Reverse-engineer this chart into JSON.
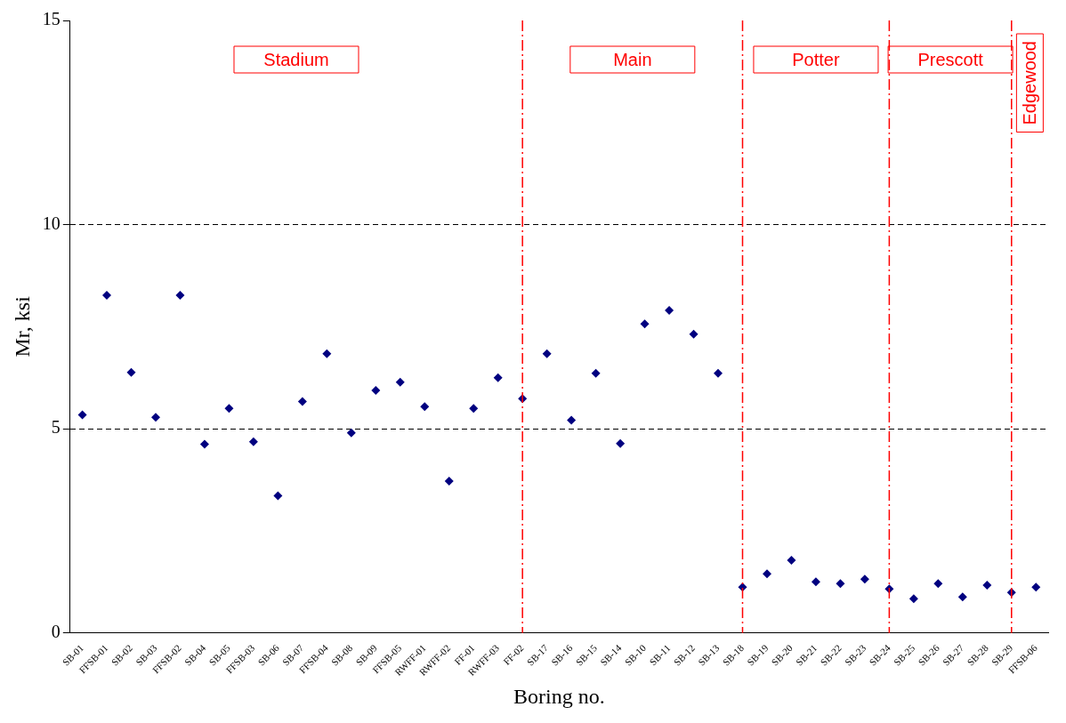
{
  "chart_data": {
    "type": "scatter",
    "xlabel": "Boring no.",
    "ylabel": "Mr, ksi",
    "categories": [
      "SB-01",
      "FFSB-01",
      "SB-02",
      "SB-03",
      "FFSB-02",
      "SB-04",
      "SB-05",
      "FFSB-03",
      "SB-06",
      "SB-07",
      "FFSB-04",
      "SB-08",
      "SB-09",
      "FFSB-05",
      "RWFF-01",
      "RWFF-02",
      "FF-01",
      "RWFF-03",
      "FF-02",
      "SB-17",
      "SB-16",
      "SB-15",
      "SB-14",
      "SB-10",
      "SB-11",
      "SB-12",
      "SB-13",
      "SB-18",
      "SB-19",
      "SB-20",
      "SB-21",
      "SB-22",
      "SB-23",
      "SB-24",
      "SB-25",
      "SB-26",
      "SB-27",
      "SB-28",
      "SB-29",
      "FFSB-06"
    ],
    "series": [
      {
        "color": "#000080",
        "values": [
          5.34,
          8.27,
          6.38,
          5.28,
          8.27,
          4.62,
          5.5,
          4.68,
          3.36,
          5.67,
          6.84,
          4.9,
          5.94,
          6.14,
          5.54,
          3.72,
          5.5,
          6.25,
          5.74,
          6.84,
          5.21,
          6.36,
          4.64,
          7.57,
          7.9,
          7.32,
          6.36,
          1.12,
          1.45,
          1.78,
          1.25,
          1.21,
          1.32,
          1.08,
          0.84,
          1.21,
          0.88,
          1.17,
          0.99,
          1.12
        ]
      }
    ],
    "ylim": [
      0,
      15
    ],
    "yticks": [
      0,
      5,
      10,
      15
    ],
    "grid": "y",
    "legend": false,
    "marker": "diamond",
    "ref_lines": [
      {
        "axis": "x",
        "value": "FF-02",
        "color": "#ff0000",
        "line_style": "dashed"
      },
      {
        "axis": "x",
        "value": "SB-18",
        "color": "#ff0000",
        "line_style": "dashed"
      },
      {
        "axis": "x",
        "value": "SB-24",
        "color": "#ff0000",
        "line_style": "dashed"
      },
      {
        "axis": "x",
        "value": "SB-29",
        "color": "#ff0000",
        "line_style": "dashed"
      }
    ],
    "annotations": [
      "Stadium",
      "Main",
      "Potter",
      "Prescott",
      "Edgewood"
    ]
  }
}
